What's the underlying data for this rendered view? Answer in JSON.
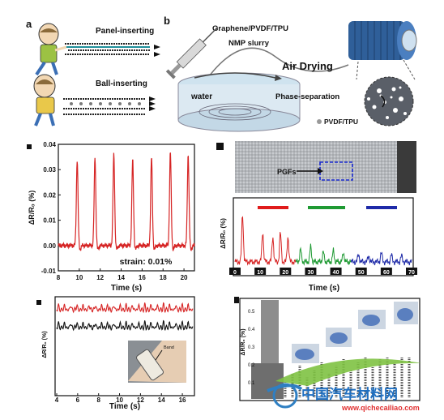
{
  "figure": {
    "panel_a": {
      "letter": "a",
      "label_top": "Panel-inserting",
      "label_bottom": "Ball-inserting"
    },
    "panel_b": {
      "letter": "b",
      "title": "Graphene/PVDF/TPU",
      "subtitle": "NMP slurry",
      "air": "Air Drying",
      "water": "water",
      "phase": "Phase-separation",
      "legend": "PVDF/TPU"
    },
    "panel_c": {
      "ylabel": "ΔR/R₀ (%)",
      "xlabel": "Time (s)",
      "annotation": "strain: 0.01%"
    },
    "panel_d": {
      "photo_label": "PGFs",
      "ylabel": "ΔR/R₀ (%)",
      "xlabel": "Time (s)",
      "legend": [
        "",
        "",
        ""
      ],
      "legend_colors": [
        "#e01b1b",
        "#1f9a33",
        "#1e2aa8"
      ]
    },
    "panel_e": {
      "ylabel": "ΔR/R₀ (%)",
      "xlabel": "Time (s)",
      "photo_label": "Band"
    },
    "panel_f": {
      "ylabel": "ΔR/R₀ (%)"
    },
    "watermark": {
      "cn": "中国汽车材料网",
      "url": "www.qichecailiao.com"
    }
  },
  "chart_data": [
    {
      "type": "line",
      "panel": "c",
      "xlabel": "Time (s)",
      "ylabel": "ΔR/R₀ (%)",
      "xlim": [
        8,
        21
      ],
      "ylim": [
        -0.01,
        0.04
      ],
      "xticks": [
        8,
        10,
        12,
        14,
        16,
        18,
        20
      ],
      "yticks": [
        -0.01,
        0.0,
        0.01,
        0.02,
        0.03,
        0.04
      ],
      "peaks_x": [
        9.8,
        11.5,
        13.3,
        15.1,
        16.9,
        18.7,
        20.4
      ],
      "peaks_y": [
        0.034,
        0.035,
        0.036,
        0.034,
        0.035,
        0.037,
        0.036
      ],
      "baseline": 0.0,
      "color": "#d62424"
    },
    {
      "type": "line",
      "panel": "d",
      "xlabel": "Time (s)",
      "xlim": [
        0,
        70
      ],
      "xticks": [
        0,
        10,
        20,
        30,
        40,
        50,
        60,
        70
      ],
      "segments": [
        {
          "x_range": [
            0,
            24
          ],
          "color": "#d62424",
          "peaks_x": [
            3,
            11,
            15,
            18,
            21
          ],
          "peaks_rel": [
            0.95,
            0.6,
            0.5,
            0.58,
            0.5
          ]
        },
        {
          "x_range": [
            24,
            46
          ],
          "color": "#1f9a33",
          "peaks_x": [
            26,
            30,
            35,
            39,
            43
          ],
          "peaks_rel": [
            0.25,
            0.3,
            0.2,
            0.22,
            0.18
          ]
        },
        {
          "x_range": [
            46,
            70
          ],
          "color": "#1e2aa8",
          "peaks_x": [
            49,
            53,
            58,
            62,
            66
          ],
          "peaks_rel": [
            0.15,
            0.12,
            0.18,
            0.14,
            0.12
          ]
        }
      ]
    },
    {
      "type": "line",
      "panel": "e",
      "xlabel": "Time (s)",
      "xlim": [
        4,
        17
      ],
      "xticks": [
        4,
        6,
        8,
        10,
        12,
        14,
        16
      ],
      "series": [
        {
          "color": "#d62424",
          "beats": 22,
          "level": 0.85
        },
        {
          "color": "#111111",
          "beats": 22,
          "level": 0.7
        }
      ]
    }
  ]
}
